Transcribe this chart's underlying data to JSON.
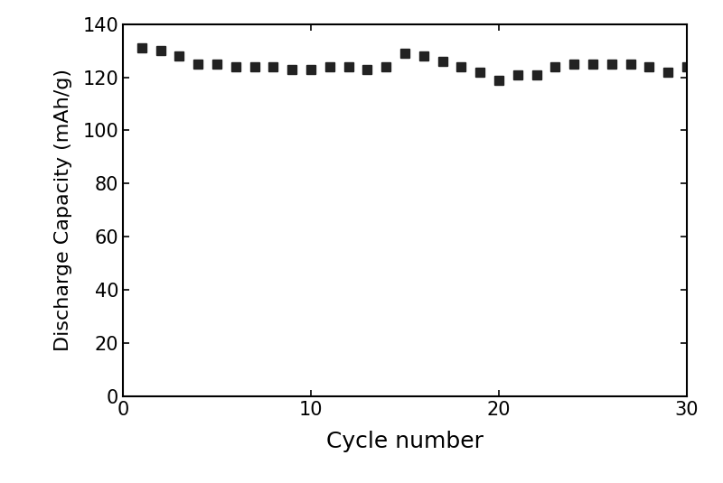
{
  "x": [
    1,
    2,
    3,
    4,
    5,
    6,
    7,
    8,
    9,
    10,
    11,
    12,
    13,
    14,
    15,
    16,
    17,
    18,
    19,
    20,
    21,
    22,
    23,
    24,
    25,
    26,
    27,
    28,
    29,
    30
  ],
  "y": [
    131,
    130,
    128,
    125,
    125,
    124,
    124,
    124,
    123,
    123,
    124,
    124,
    123,
    124,
    129,
    128,
    126,
    124,
    122,
    119,
    121,
    121,
    124,
    125,
    125,
    125,
    125,
    124,
    122,
    124
  ],
  "xlabel": "Cycle number",
  "ylabel": "Discharge Capacity (mAh/g)",
  "xlim": [
    0,
    30
  ],
  "ylim": [
    0,
    140
  ],
  "xticks": [
    0,
    10,
    20,
    30
  ],
  "yticks": [
    0,
    20,
    40,
    60,
    80,
    100,
    120,
    140
  ],
  "marker": "s",
  "marker_color": "#222222",
  "marker_size": 7,
  "background_color": "#ffffff",
  "xlabel_fontsize": 18,
  "ylabel_fontsize": 16,
  "tick_fontsize": 15
}
